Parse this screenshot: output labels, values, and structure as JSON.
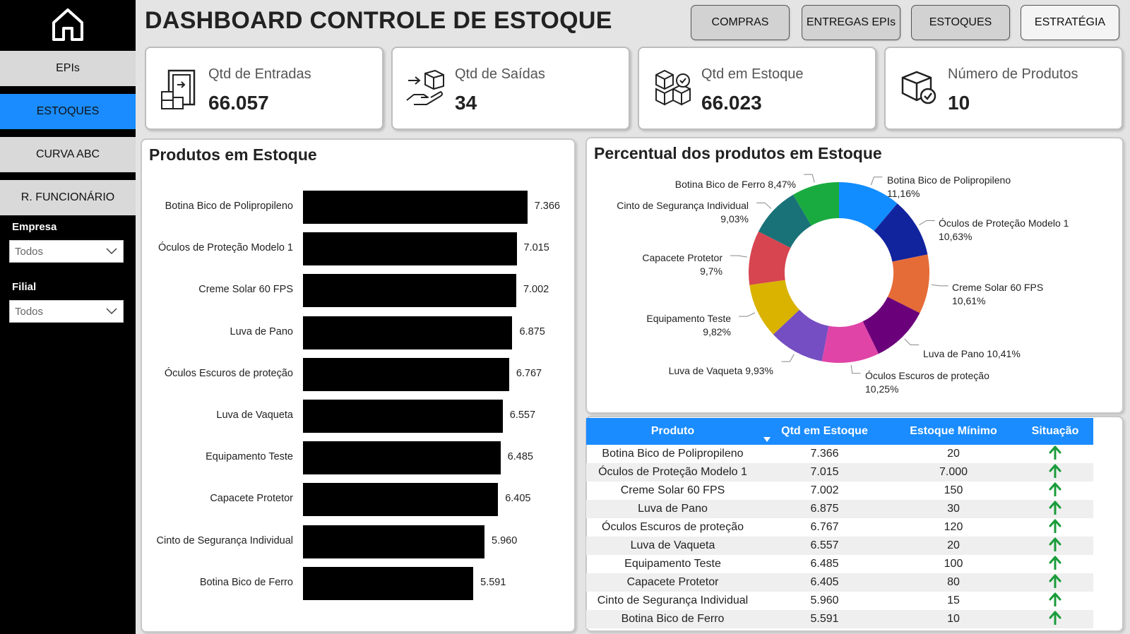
{
  "sidebar": {
    "home_icon": "home-icon",
    "items": [
      {
        "label": "EPIs",
        "active": false
      },
      {
        "label": "ESTOQUES",
        "active": true
      },
      {
        "label": "CURVA ABC",
        "active": false
      },
      {
        "label": "R. FUNCIONÁRIO",
        "active": false
      }
    ],
    "filters": {
      "empresa": {
        "label": "Empresa",
        "value": "Todos"
      },
      "filial": {
        "label": "Filial",
        "value": "Todos"
      }
    }
  },
  "header": {
    "title": "DASHBOARD CONTROLE DE ESTOQUE",
    "buttons": [
      "COMPRAS",
      "ENTREGAS EPIs",
      "ESTOQUES",
      "ESTRATÉGIA"
    ]
  },
  "kpis": [
    {
      "label": "Qtd de Entradas",
      "value": "66.057",
      "icon": "door-boxes-icon"
    },
    {
      "label": "Qtd de Saídas",
      "value": "34",
      "icon": "hand-box-icon"
    },
    {
      "label": "Qtd em Estoque",
      "value": "66.023",
      "icon": "stacked-boxes-icon"
    },
    {
      "label": "Número de Produtos",
      "value": "10",
      "icon": "box-check-icon"
    }
  ],
  "bar_panel": {
    "title": "Produtos em Estoque"
  },
  "donut_panel": {
    "title": "Percentual dos produtos em Estoque"
  },
  "chart_data": [
    {
      "type": "bar",
      "title": "Produtos em Estoque",
      "orientation": "horizontal",
      "categories": [
        "Botina Bico de Polipropileno",
        "Óculos de Proteção Modelo 1",
        "Creme Solar 60 FPS",
        "Luva de Pano",
        "Óculos Escuros de proteção",
        "Luva de Vaqueta",
        "Equipamento Teste",
        "Capacete Protetor",
        "Cinto de Segurança Individual",
        "Botina Bico de Ferro"
      ],
      "values": [
        7366,
        7015,
        7002,
        6875,
        6767,
        6557,
        6485,
        6405,
        5960,
        5591
      ],
      "value_labels": [
        "7.366",
        "7.015",
        "7.002",
        "6.875",
        "6.767",
        "6.557",
        "6.485",
        "6.405",
        "5.960",
        "5.591"
      ],
      "color": "#000000"
    },
    {
      "type": "pie",
      "style": "donut",
      "title": "Percentual dos produtos em Estoque",
      "slices": [
        {
          "name": "Botina Bico de Polipropileno",
          "pct": 11.16,
          "label": "11,16%",
          "color": "#118dff"
        },
        {
          "name": "Óculos de Proteção Modelo 1",
          "pct": 10.63,
          "label": "10,63%",
          "color": "#12239e"
        },
        {
          "name": "Creme Solar 60 FPS",
          "pct": 10.61,
          "label": "10,61%",
          "color": "#e66c37"
        },
        {
          "name": "Luva de Pano",
          "pct": 10.41,
          "label": "10,41%",
          "color": "#6b007b"
        },
        {
          "name": "Óculos Escuros de proteção",
          "pct": 10.25,
          "label": "10,25%",
          "color": "#e044a7"
        },
        {
          "name": "Luva de Vaqueta",
          "pct": 9.93,
          "label": "9,93%",
          "color": "#744ec2"
        },
        {
          "name": "Equipamento Teste",
          "pct": 9.82,
          "label": "9,82%",
          "color": "#d9b300"
        },
        {
          "name": "Capacete Protetor",
          "pct": 9.7,
          "label": "9,7%",
          "color": "#d64550"
        },
        {
          "name": "Cinto de Segurança Individual",
          "pct": 9.03,
          "label": "9,03%",
          "color": "#197278"
        },
        {
          "name": "Botina Bico de Ferro",
          "pct": 8.47,
          "label": "8,47%",
          "color": "#1aab40"
        }
      ]
    }
  ],
  "table": {
    "columns": [
      "Produto",
      "Qtd em Estoque",
      "Estoque Mínimo",
      "Situação"
    ],
    "rows": [
      [
        "Botina Bico de Polipropileno",
        "7.366",
        "20"
      ],
      [
        "Óculos de Proteção Modelo 1",
        "7.015",
        "7.000"
      ],
      [
        "Creme Solar 60 FPS",
        "7.002",
        "150"
      ],
      [
        "Luva de Pano",
        "6.875",
        "30"
      ],
      [
        "Óculos Escuros de proteção",
        "6.767",
        "120"
      ],
      [
        "Luva de Vaqueta",
        "6.557",
        "20"
      ],
      [
        "Equipamento Teste",
        "6.485",
        "100"
      ],
      [
        "Capacete Protetor",
        "6.405",
        "80"
      ],
      [
        "Cinto de Segurança Individual",
        "5.960",
        "15"
      ],
      [
        "Botina Bico de Ferro",
        "5.591",
        "10"
      ]
    ],
    "status_icon": "arrow-up-icon",
    "status_color": "#1a9c3a",
    "header_color": "#1a8cff"
  }
}
